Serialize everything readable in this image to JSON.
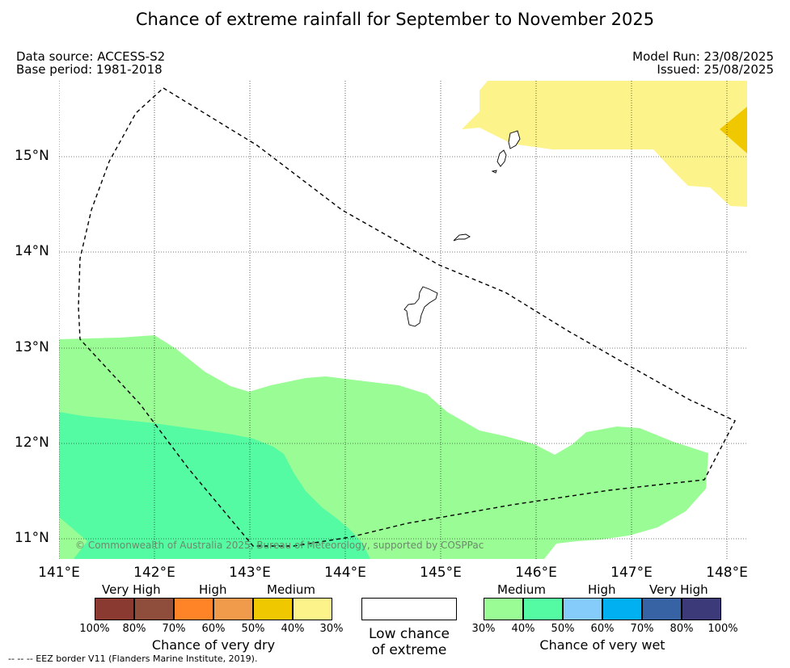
{
  "title": "Chance of extreme rainfall for September to November 2025",
  "meta": {
    "data_source": "Data source: ACCESS-S2",
    "base_period": "Base period: 1981-2018",
    "model_run": "Model Run: 23/08/2025",
    "issued": "Issued: 25/08/2025"
  },
  "map": {
    "lon_ticks": [
      "141°E",
      "142°E",
      "143°E",
      "144°E",
      "145°E",
      "146°E",
      "147°E",
      "148°E"
    ],
    "lat_ticks": [
      "15°N",
      "14°N",
      "13°N",
      "12°N",
      "11°N"
    ],
    "copyright": "© Commonwealth of Australia 2025, Bureau of Meteorology, supported by COSPPac",
    "colors": {
      "wet_medium": "#9afc94",
      "wet_high": "#55fba3",
      "dry_medium": "#fdf38b",
      "dry_high": "#f0c800",
      "eez_border": "#000000"
    }
  },
  "legend": {
    "dry": {
      "headers": [
        "Very High",
        "High",
        "Medium"
      ],
      "colors": [
        "#8b3a32",
        "#8e4e3b",
        "#fe8427",
        "#ef9b4b",
        "#f0c800",
        "#fdf38b"
      ],
      "ticks": [
        "100%",
        "80%",
        "70%",
        "60%",
        "50%",
        "40%",
        "30%"
      ],
      "title": "Chance of very dry"
    },
    "low": {
      "line1": "Low chance",
      "line2": "of extreme"
    },
    "wet": {
      "headers": [
        "Medium",
        "High",
        "Very High"
      ],
      "colors": [
        "#9afc94",
        "#55fba3",
        "#86ccfb",
        "#00b0f0",
        "#3762a3",
        "#3d3a79"
      ],
      "ticks": [
        "30%",
        "40%",
        "50%",
        "60%",
        "70%",
        "80%",
        "100%"
      ],
      "title": "Chance of very wet"
    }
  },
  "footer": "--  --  -- EEZ border V11 (Flanders Marine Institute, 2019)."
}
